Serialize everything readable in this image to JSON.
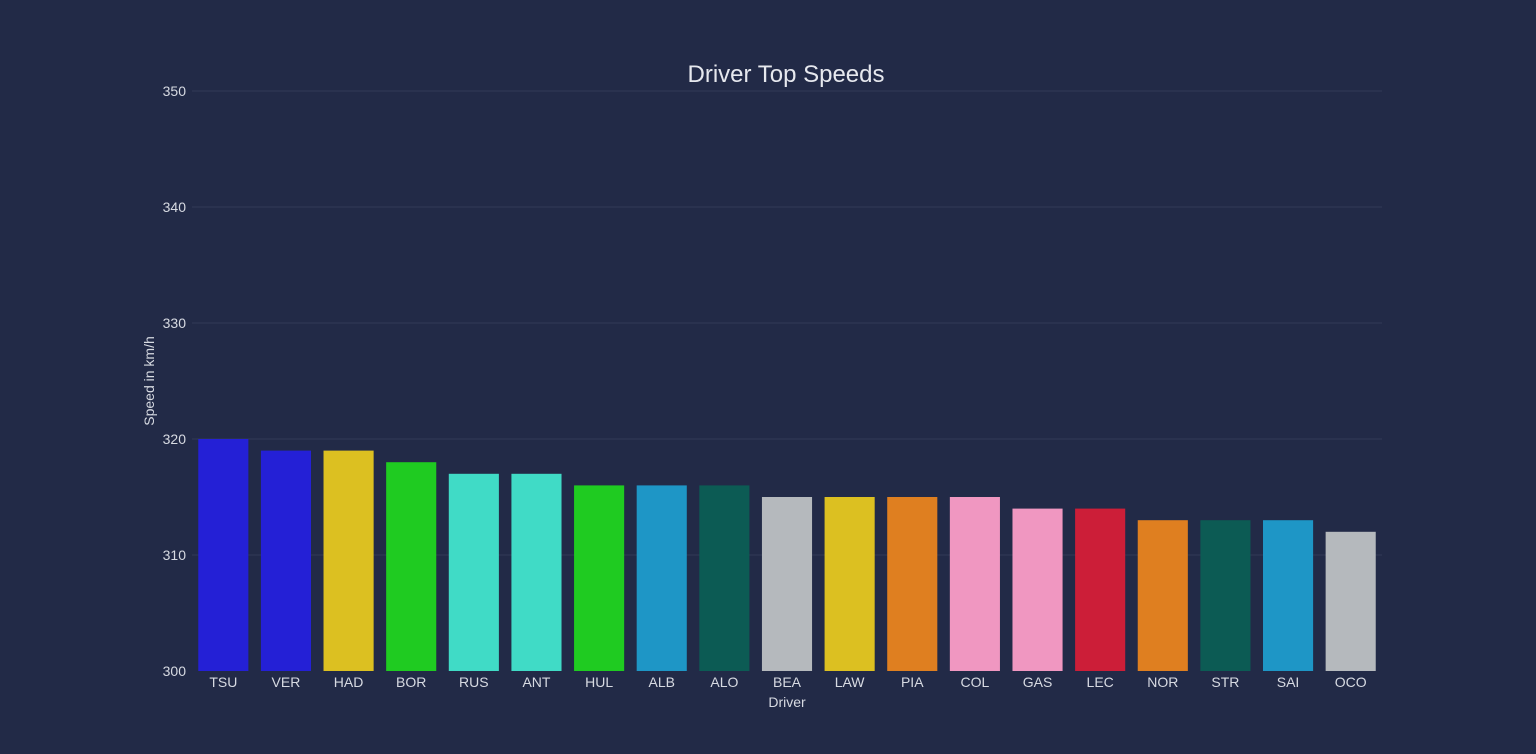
{
  "chart_data": {
    "type": "bar",
    "title": "Driver Top Speeds",
    "xlabel": "Driver",
    "ylabel": "Speed in km/h",
    "ylim": [
      300,
      350
    ],
    "yticks": [
      300,
      310,
      320,
      330,
      340,
      350
    ],
    "grid": true,
    "categories": [
      "TSU",
      "VER",
      "HAD",
      "BOR",
      "RUS",
      "ANT",
      "HUL",
      "ALB",
      "ALO",
      "BEA",
      "LAW",
      "PIA",
      "COL",
      "GAS",
      "LEC",
      "NOR",
      "STR",
      "SAI",
      "OCO"
    ],
    "values": [
      320,
      319,
      319,
      318,
      317,
      317,
      316,
      316,
      316,
      315,
      315,
      315,
      315,
      314,
      314,
      313,
      313,
      313,
      312
    ],
    "colors": [
      "#2420d6",
      "#2420d6",
      "#dcc021",
      "#1fcb21",
      "#40dbc6",
      "#40dbc6",
      "#1fcb21",
      "#1e96c6",
      "#0c5b54",
      "#b5b9bd",
      "#dcc021",
      "#df7f20",
      "#f097c1",
      "#f097c1",
      "#cc1e38",
      "#df7f20",
      "#0c5b54",
      "#1e96c6",
      "#b5b9bd"
    ]
  }
}
